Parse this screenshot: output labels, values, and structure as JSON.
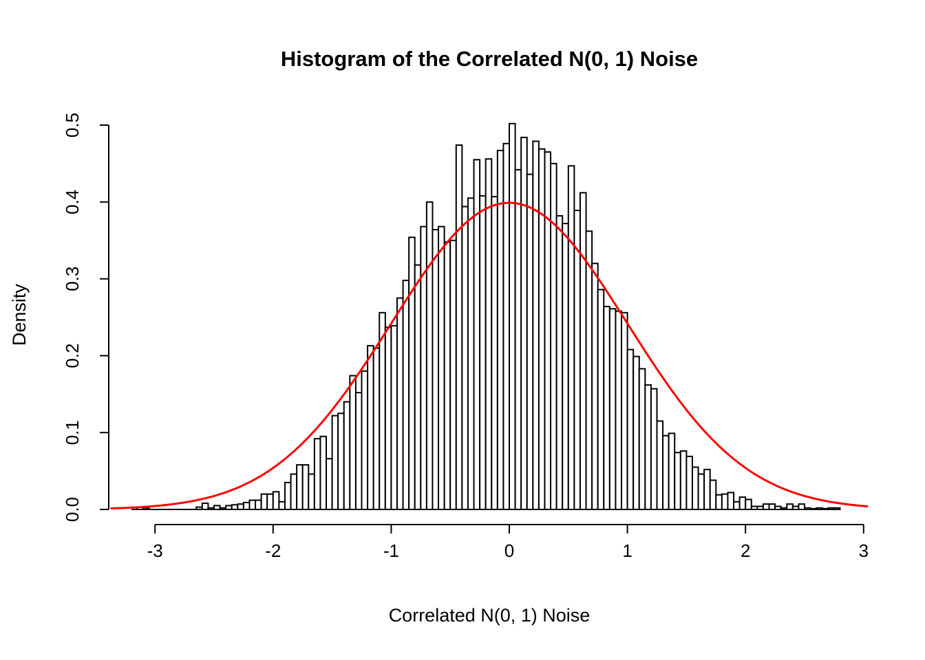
{
  "chart_data": {
    "type": "bar",
    "subtype": "histogram-with-density-curve",
    "title": "Histogram of the Correlated N(0, 1) Noise",
    "xlabel": "Correlated N(0, 1) Noise",
    "ylabel": "Density",
    "x_tick_labels": [
      "-3",
      "-2",
      "-1",
      "0",
      "1",
      "2",
      "3"
    ],
    "y_tick_labels": [
      "0.0",
      "0.1",
      "0.2",
      "0.3",
      "0.4",
      "0.5"
    ],
    "xlim": [
      -3.38,
      3.04
    ],
    "ylim": [
      0.0,
      0.5
    ],
    "grid": "off",
    "legend": "none",
    "bar_fill": "#ffffff",
    "bar_stroke": "#000000",
    "curve_color": "#ff0000",
    "axis_color": "#000000",
    "bins": {
      "start": -3.2,
      "end": 2.8,
      "bin_width": 0.05,
      "densities": [
        0.0,
        0.003,
        0.002,
        0.0,
        0.0,
        0.0,
        0.0,
        0.0,
        0.0,
        0.0,
        0.0,
        0.003,
        0.008,
        0.002,
        0.005,
        0.002,
        0.005,
        0.006,
        0.007,
        0.009,
        0.012,
        0.012,
        0.02,
        0.02,
        0.023,
        0.01,
        0.035,
        0.046,
        0.058,
        0.058,
        0.046,
        0.092,
        0.095,
        0.066,
        0.122,
        0.125,
        0.14,
        0.174,
        0.152,
        0.18,
        0.213,
        0.21,
        0.256,
        0.237,
        0.239,
        0.275,
        0.298,
        0.354,
        0.318,
        0.368,
        0.4,
        0.364,
        0.368,
        0.348,
        0.35,
        0.474,
        0.394,
        0.405,
        0.455,
        0.408,
        0.456,
        0.407,
        0.467,
        0.476,
        0.502,
        0.442,
        0.484,
        0.436,
        0.479,
        0.469,
        0.465,
        0.45,
        0.382,
        0.372,
        0.447,
        0.389,
        0.412,
        0.362,
        0.32,
        0.286,
        0.264,
        0.261,
        0.258,
        0.256,
        0.208,
        0.199,
        0.183,
        0.162,
        0.157,
        0.115,
        0.096,
        0.099,
        0.074,
        0.076,
        0.069,
        0.055,
        0.046,
        0.052,
        0.038,
        0.019,
        0.02,
        0.022,
        0.01,
        0.016,
        0.013,
        0.004,
        0.004,
        0.007,
        0.007,
        0.004,
        0.002,
        0.007,
        0.004,
        0.007,
        0.002,
        0.001,
        0.002,
        0.001,
        0.002,
        0.002
      ]
    },
    "overlay_curve": {
      "name": "normal-density",
      "mean": 0,
      "sd": 1,
      "peak_density": 0.3989,
      "x_range": [
        -3.37,
        3.03
      ]
    }
  }
}
